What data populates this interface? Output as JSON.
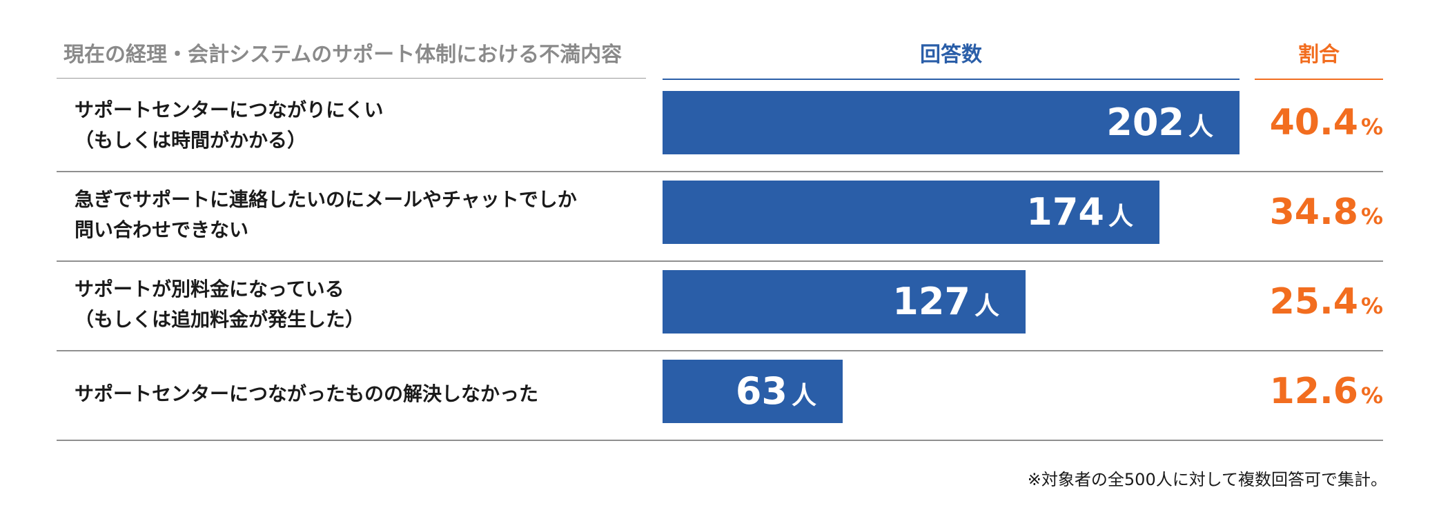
{
  "chart_data": {
    "type": "bar",
    "orientation": "horizontal",
    "headers": {
      "category": "現在の経理・会計システムのサポート体制における不満内容",
      "count": "回答数",
      "percent": "割合"
    },
    "categories": [
      [
        "サポートセンターにつながりにくい",
        "（もしくは時間がかかる）"
      ],
      [
        "急ぎでサポートに連絡したいのにメールやチャットでしか",
        "問い合わせできない"
      ],
      [
        "サポートが別料金になっている",
        "（もしくは追加料金が発生した）"
      ],
      [
        "サポートセンターにつながったものの解決しなかった"
      ]
    ],
    "values": [
      202,
      174,
      127,
      63
    ],
    "value_unit": "人",
    "percents": [
      "40.4",
      "34.8",
      "25.4",
      "12.6"
    ],
    "percent_unit": "%",
    "xlim": [
      0,
      202
    ],
    "grid": false,
    "footnote": "※対象者の全500人に対して複数回答可で集計。",
    "colors": {
      "bar": "#2a5ea8",
      "percent": "#f26d1f",
      "header_gray": "#8a8a8a"
    }
  }
}
